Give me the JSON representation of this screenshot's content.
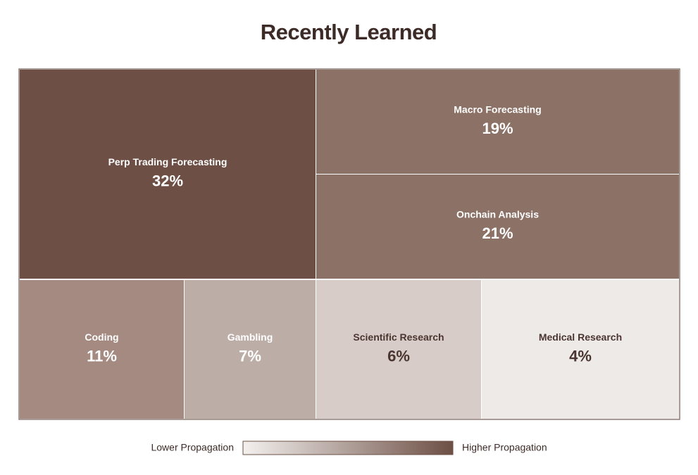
{
  "chart_data": {
    "type": "treemap",
    "title": "Recently Learned",
    "categories": [
      "Perp Trading Forecasting",
      "Macro Forecasting",
      "Onchain Analysis",
      "Coding",
      "Gambling",
      "Scientific Research",
      "Medical Research"
    ],
    "values": [
      32,
      19,
      21,
      11,
      7,
      6,
      4
    ],
    "value_labels": [
      "32%",
      "19%",
      "21%",
      "11%",
      "7%",
      "6%",
      "4%"
    ],
    "colors": [
      "#6d4f45",
      "#8c7166",
      "#8c7166",
      "#a48a81",
      "#bdada7",
      "#d8ccc8",
      "#eeeae7"
    ],
    "legend": {
      "low_label": "Lower Propagation",
      "high_label": "Higher Propagation",
      "low_color": "#f3f0ee",
      "high_color": "#6d4f45"
    }
  }
}
